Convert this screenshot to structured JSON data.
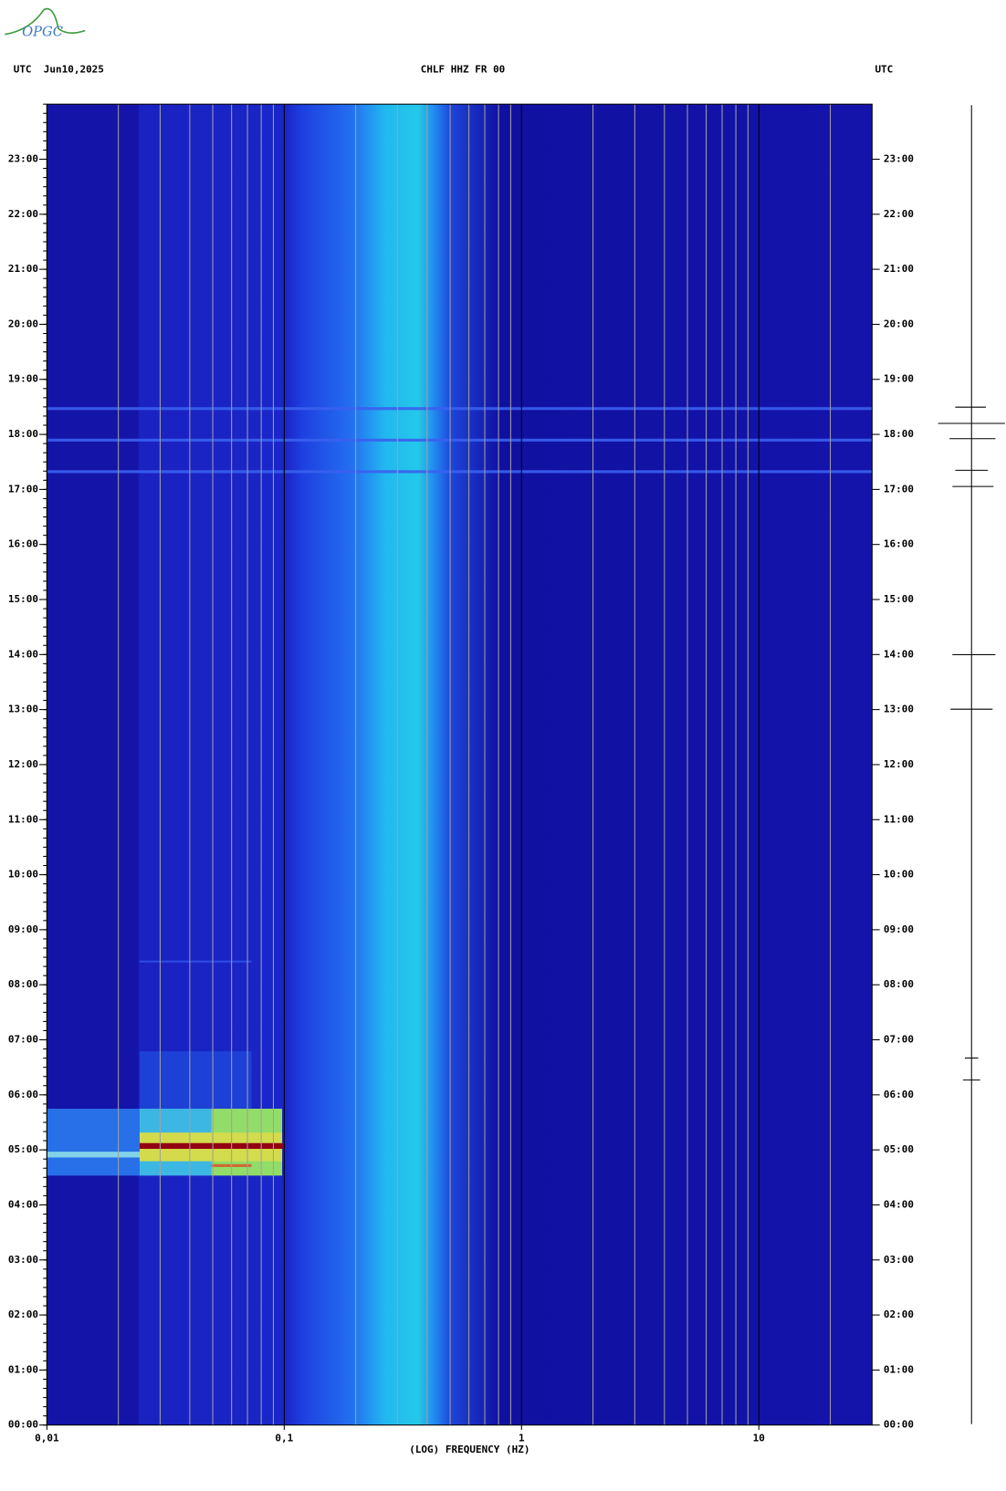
{
  "logo": "OPGC",
  "chart_data": {
    "type": "spectrogram",
    "title": "CHLF HHZ FR 00",
    "left_header": "UTC  Jun10,2025",
    "right_header": "UTC",
    "x_label": "(LOG) FREQUENCY (HZ)",
    "log_x": true,
    "grid": true,
    "xlim": [
      0.01,
      30
    ],
    "xticks": [
      {
        "value": 0.01,
        "label": "0,01"
      },
      {
        "value": 0.1,
        "label": "0,1"
      },
      1,
      10
    ],
    "ylim": [
      0,
      24
    ],
    "yticks": [
      {
        "value": 0,
        "label": "00:00"
      },
      {
        "value": 1,
        "label": "01:00"
      },
      {
        "value": 2,
        "label": "02:00"
      },
      {
        "value": 3,
        "label": "03:00"
      },
      {
        "value": 4,
        "label": "04:00"
      },
      {
        "value": 5,
        "label": "05:00"
      },
      {
        "value": 6,
        "label": "06:00"
      },
      {
        "value": 7,
        "label": "07:00"
      },
      {
        "value": 8,
        "label": "08:00"
      },
      {
        "value": 9,
        "label": "09:00"
      },
      {
        "value": 10,
        "label": "10:00"
      },
      {
        "value": 11,
        "label": "11:00"
      },
      {
        "value": 12,
        "label": "12:00"
      },
      {
        "value": 13,
        "label": "13:00"
      },
      {
        "value": 14,
        "label": "14:00"
      },
      {
        "value": 15,
        "label": "15:00"
      },
      {
        "value": 16,
        "label": "16:00"
      },
      {
        "value": 17,
        "label": "17:00"
      },
      {
        "value": 18,
        "label": "18:00"
      },
      {
        "value": 19,
        "label": "19:00"
      },
      {
        "value": 20,
        "label": "20:00"
      },
      {
        "value": 21,
        "label": "21:00"
      },
      {
        "value": 22,
        "label": "22:00"
      },
      {
        "value": 23,
        "label": "23:00"
      }
    ]
  }
}
